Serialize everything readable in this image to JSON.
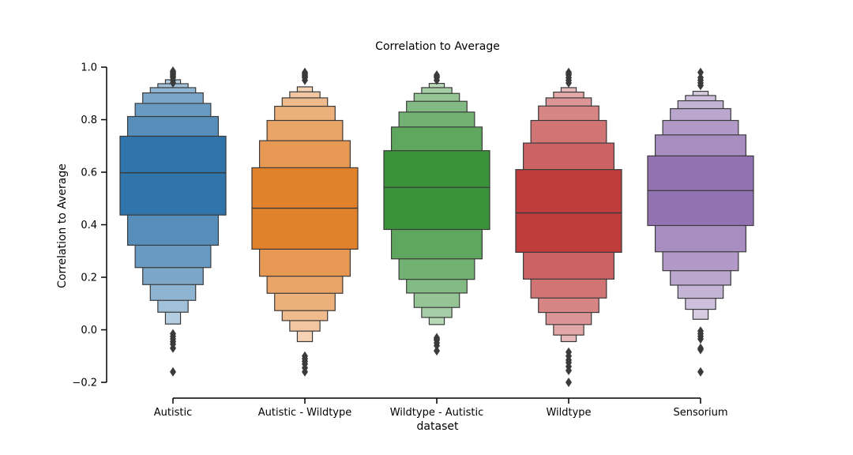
{
  "chart_data": {
    "type": "boxen",
    "title": "Correlation to Average",
    "xlabel": "dataset",
    "ylabel": "Correlation to Average",
    "ylim": [
      -0.2,
      1.0
    ],
    "yticks": [
      -0.2,
      0.0,
      0.2,
      0.4,
      0.6,
      0.8,
      1.0
    ],
    "ytick_labels": [
      "−0.2",
      "0.0",
      "0.2",
      "0.4",
      "0.6",
      "0.8",
      "1.0"
    ],
    "categories": [
      "Autistic",
      "Autistic - Wildtype",
      "Wildtype - Autistic",
      "Wildtype",
      "Sensorium"
    ],
    "grid": false,
    "series": [
      {
        "category": "Autistic",
        "color": "#2f74aa",
        "median": 0.598,
        "levels": [
          [
            0.437,
            0.737
          ],
          [
            0.322,
            0.812
          ],
          [
            0.237,
            0.862
          ],
          [
            0.172,
            0.902
          ],
          [
            0.112,
            0.922
          ],
          [
            0.067,
            0.937
          ],
          [
            0.022,
            0.952
          ]
        ],
        "outliers": [
          -0.16,
          -0.07,
          -0.055,
          -0.045,
          -0.035,
          -0.025,
          -0.015,
          0.94,
          0.95,
          0.96,
          0.965,
          0.97,
          0.975,
          0.98,
          0.985
        ]
      },
      {
        "category": "Autistic - Wildtype",
        "color": "#e1812c",
        "median": 0.463,
        "levels": [
          [
            0.307,
            0.617
          ],
          [
            0.204,
            0.72
          ],
          [
            0.139,
            0.797
          ],
          [
            0.073,
            0.851
          ],
          [
            0.035,
            0.883
          ],
          [
            -0.005,
            0.906
          ],
          [
            -0.045,
            0.925
          ]
        ],
        "outliers": [
          -0.16,
          -0.145,
          -0.13,
          -0.12,
          -0.11,
          -0.1,
          0.95,
          0.96,
          0.965,
          0.97,
          0.975,
          0.98
        ]
      },
      {
        "category": "Wildtype - Autistic",
        "color": "#3a923a",
        "median": 0.542,
        "levels": [
          [
            0.382,
            0.682
          ],
          [
            0.27,
            0.772
          ],
          [
            0.192,
            0.829
          ],
          [
            0.14,
            0.87
          ],
          [
            0.085,
            0.9
          ],
          [
            0.047,
            0.922
          ],
          [
            0.02,
            0.938
          ]
        ],
        "outliers": [
          -0.08,
          -0.06,
          -0.05,
          -0.04,
          -0.035,
          -0.03,
          0.95,
          0.96,
          0.965,
          0.97
        ]
      },
      {
        "category": "Wildtype",
        "color": "#c03d3e",
        "median": 0.445,
        "levels": [
          [
            0.295,
            0.61
          ],
          [
            0.193,
            0.711
          ],
          [
            0.121,
            0.797
          ],
          [
            0.066,
            0.852
          ],
          [
            0.02,
            0.883
          ],
          [
            -0.02,
            0.905
          ],
          [
            -0.045,
            0.922
          ]
        ],
        "outliers": [
          -0.2,
          -0.155,
          -0.14,
          -0.125,
          -0.115,
          -0.1,
          -0.085,
          0.94,
          0.95,
          0.96,
          0.97,
          0.975,
          0.98
        ]
      },
      {
        "category": "Sensorium",
        "color": "#9372b2",
        "median": 0.53,
        "levels": [
          [
            0.397,
            0.662
          ],
          [
            0.297,
            0.742
          ],
          [
            0.225,
            0.797
          ],
          [
            0.17,
            0.842
          ],
          [
            0.12,
            0.872
          ],
          [
            0.078,
            0.892
          ],
          [
            0.04,
            0.908
          ]
        ],
        "outliers": [
          -0.16,
          -0.075,
          -0.07,
          -0.035,
          -0.025,
          -0.015,
          -0.005,
          0.93,
          0.94,
          0.95,
          0.96,
          0.98
        ]
      }
    ]
  }
}
